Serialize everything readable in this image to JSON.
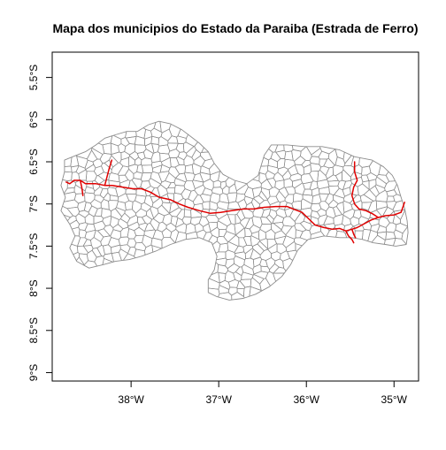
{
  "title": "Mapa dos municipios do Estado da Paraiba (Estrada de Ferro)",
  "axes": {
    "x_ticks": [
      {
        "value": -38,
        "label": "38°W"
      },
      {
        "value": -37,
        "label": "37°W"
      },
      {
        "value": -36,
        "label": "36°W"
      },
      {
        "value": -35,
        "label": "35°W"
      }
    ],
    "y_ticks": [
      {
        "value": -5.5,
        "label": "5.5°S"
      },
      {
        "value": -6,
        "label": "6°S"
      },
      {
        "value": -6.5,
        "label": "6.5°S"
      },
      {
        "value": -7,
        "label": "7°S"
      },
      {
        "value": -7.5,
        "label": "7.5°S"
      },
      {
        "value": -8,
        "label": "8°S"
      },
      {
        "value": -8.5,
        "label": "8.5°S"
      },
      {
        "value": -9,
        "label": "9°S"
      }
    ],
    "xlim": [
      -38.9,
      -34.72
    ],
    "ylim": [
      -9.1,
      -5.2
    ]
  },
  "colors": {
    "municipality_border": "#8c8c8c",
    "railway": "#e00000",
    "frame": "#000000"
  },
  "state_outline": [
    [
      -38.76,
      -6.48
    ],
    [
      -38.62,
      -6.42
    ],
    [
      -38.52,
      -6.38
    ],
    [
      -38.4,
      -6.3
    ],
    [
      -38.3,
      -6.22
    ],
    [
      -38.18,
      -6.18
    ],
    [
      -38.05,
      -6.14
    ],
    [
      -37.93,
      -6.14
    ],
    [
      -37.8,
      -6.06
    ],
    [
      -37.68,
      -6.02
    ],
    [
      -37.55,
      -6.05
    ],
    [
      -37.42,
      -6.12
    ],
    [
      -37.32,
      -6.2
    ],
    [
      -37.22,
      -6.28
    ],
    [
      -37.12,
      -6.38
    ],
    [
      -37.05,
      -6.52
    ],
    [
      -36.95,
      -6.65
    ],
    [
      -36.82,
      -6.72
    ],
    [
      -36.68,
      -6.76
    ],
    [
      -36.55,
      -6.66
    ],
    [
      -36.48,
      -6.42
    ],
    [
      -36.4,
      -6.3
    ],
    [
      -36.22,
      -6.3
    ],
    [
      -36.02,
      -6.32
    ],
    [
      -35.82,
      -6.32
    ],
    [
      -35.62,
      -6.36
    ],
    [
      -35.45,
      -6.44
    ],
    [
      -35.25,
      -6.48
    ],
    [
      -35.12,
      -6.56
    ],
    [
      -35.02,
      -6.66
    ],
    [
      -34.96,
      -6.78
    ],
    [
      -34.92,
      -6.92
    ],
    [
      -34.88,
      -7.05
    ],
    [
      -34.85,
      -7.2
    ],
    [
      -34.84,
      -7.34
    ],
    [
      -34.86,
      -7.48
    ],
    [
      -34.98,
      -7.5
    ],
    [
      -35.1,
      -7.48
    ],
    [
      -35.24,
      -7.46
    ],
    [
      -35.36,
      -7.42
    ],
    [
      -35.48,
      -7.4
    ],
    [
      -35.62,
      -7.4
    ],
    [
      -35.8,
      -7.38
    ],
    [
      -35.98,
      -7.42
    ],
    [
      -36.1,
      -7.55
    ],
    [
      -36.18,
      -7.72
    ],
    [
      -36.28,
      -7.86
    ],
    [
      -36.42,
      -7.98
    ],
    [
      -36.58,
      -8.07
    ],
    [
      -36.72,
      -8.12
    ],
    [
      -36.88,
      -8.14
    ],
    [
      -37.02,
      -8.1
    ],
    [
      -37.12,
      -8.05
    ],
    [
      -37.12,
      -7.9
    ],
    [
      -37.05,
      -7.78
    ],
    [
      -37.02,
      -7.62
    ],
    [
      -37.08,
      -7.46
    ],
    [
      -37.22,
      -7.4
    ],
    [
      -37.38,
      -7.42
    ],
    [
      -37.55,
      -7.48
    ],
    [
      -37.72,
      -7.56
    ],
    [
      -37.88,
      -7.62
    ],
    [
      -38.02,
      -7.66
    ],
    [
      -38.18,
      -7.68
    ],
    [
      -38.32,
      -7.72
    ],
    [
      -38.48,
      -7.76
    ],
    [
      -38.62,
      -7.68
    ],
    [
      -38.7,
      -7.52
    ],
    [
      -38.64,
      -7.38
    ],
    [
      -38.7,
      -7.24
    ],
    [
      -38.8,
      -7.08
    ],
    [
      -38.75,
      -6.92
    ],
    [
      -38.8,
      -6.78
    ],
    [
      -38.76,
      -6.62
    ],
    [
      -38.76,
      -6.48
    ]
  ],
  "railway_lines": [
    [
      [
        -38.65,
        -6.72
      ],
      [
        -38.58,
        -6.72
      ],
      [
        -38.52,
        -6.76
      ],
      [
        -38.4,
        -6.76
      ],
      [
        -38.3,
        -6.78
      ],
      [
        -38.22,
        -6.78
      ],
      [
        -38.1,
        -6.8
      ],
      [
        -37.98,
        -6.82
      ],
      [
        -37.88,
        -6.82
      ],
      [
        -37.78,
        -6.86
      ],
      [
        -37.68,
        -6.92
      ],
      [
        -37.55,
        -6.95
      ],
      [
        -37.45,
        -7.0
      ],
      [
        -37.35,
        -7.04
      ],
      [
        -37.22,
        -7.08
      ],
      [
        -37.1,
        -7.11
      ],
      [
        -36.98,
        -7.1
      ],
      [
        -36.85,
        -7.08
      ],
      [
        -36.72,
        -7.06
      ],
      [
        -36.6,
        -7.06
      ],
      [
        -36.48,
        -7.04
      ],
      [
        -36.35,
        -7.03
      ],
      [
        -36.22,
        -7.03
      ],
      [
        -36.15,
        -7.06
      ],
      [
        -36.05,
        -7.1
      ],
      [
        -35.97,
        -7.18
      ],
      [
        -35.9,
        -7.25
      ],
      [
        -35.8,
        -7.28
      ],
      [
        -35.7,
        -7.3
      ],
      [
        -35.62,
        -7.29
      ],
      [
        -35.55,
        -7.32
      ],
      [
        -35.48,
        -7.3
      ],
      [
        -35.42,
        -7.28
      ],
      [
        -35.35,
        -7.24
      ],
      [
        -35.26,
        -7.19
      ],
      [
        -35.18,
        -7.16
      ],
      [
        -35.1,
        -7.14
      ],
      [
        -35.0,
        -7.13
      ],
      [
        -34.92,
        -7.1
      ],
      [
        -34.88,
        -6.98
      ]
    ],
    [
      [
        -38.65,
        -6.72
      ],
      [
        -38.7,
        -6.76
      ],
      [
        -38.74,
        -6.74
      ]
    ],
    [
      [
        -38.58,
        -6.72
      ],
      [
        -38.56,
        -6.82
      ],
      [
        -38.55,
        -6.9
      ]
    ],
    [
      [
        -38.3,
        -6.78
      ],
      [
        -38.28,
        -6.7
      ],
      [
        -38.25,
        -6.58
      ],
      [
        -38.22,
        -6.48
      ]
    ],
    [
      [
        -35.45,
        -6.5
      ],
      [
        -35.45,
        -6.62
      ],
      [
        -35.42,
        -6.72
      ],
      [
        -35.46,
        -6.8
      ],
      [
        -35.48,
        -6.9
      ],
      [
        -35.45,
        -7.0
      ],
      [
        -35.4,
        -7.06
      ],
      [
        -35.32,
        -7.08
      ],
      [
        -35.24,
        -7.12
      ],
      [
        -35.18,
        -7.16
      ]
    ],
    [
      [
        -35.55,
        -7.32
      ],
      [
        -35.52,
        -7.38
      ],
      [
        -35.48,
        -7.42
      ],
      [
        -35.46,
        -7.46
      ]
    ],
    [
      [
        -35.48,
        -7.3
      ],
      [
        -35.46,
        -7.36
      ],
      [
        -35.44,
        -7.4
      ]
    ]
  ]
}
